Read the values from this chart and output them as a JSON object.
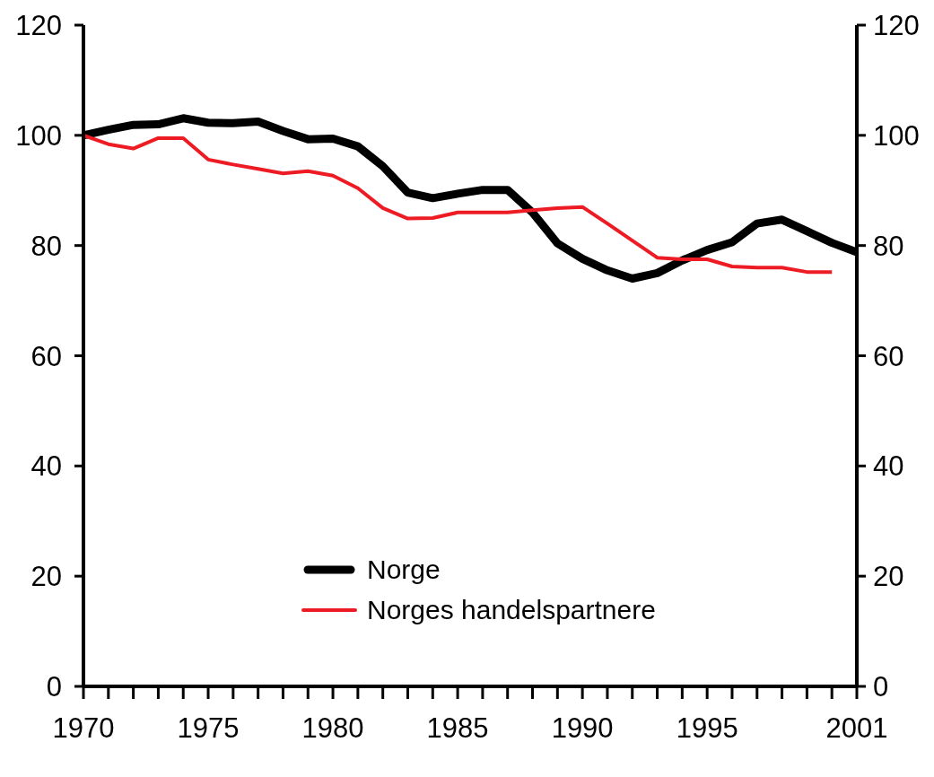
{
  "chart_data": {
    "type": "line",
    "x": [
      1970,
      1971,
      1972,
      1973,
      1974,
      1975,
      1976,
      1977,
      1978,
      1979,
      1980,
      1981,
      1982,
      1983,
      1984,
      1985,
      1986,
      1987,
      1988,
      1989,
      1990,
      1991,
      1992,
      1993,
      1994,
      1995,
      1996,
      1997,
      1998,
      1999,
      2000,
      2001
    ],
    "series": [
      {
        "name": "Norge",
        "color": "#000000",
        "values": [
          100,
          101,
          101.9,
          102,
          103.1,
          102.3,
          102.2,
          102.5,
          100.8,
          99.3,
          99.4,
          98,
          94.4,
          89.6,
          88.6,
          89.4,
          90.1,
          90.1,
          86,
          80.4,
          77.6,
          75.5,
          74,
          75,
          77.3,
          79.2,
          80.6,
          84,
          84.7,
          82.6,
          80.5,
          78.8
        ]
      },
      {
        "name": "Norges handelspartnere",
        "color": "#ed1c24",
        "values": [
          100,
          98.4,
          97.6,
          99.5,
          99.5,
          95.6,
          94.7,
          93.9,
          93.1,
          93.5,
          92.7,
          90.4,
          86.8,
          84.9,
          85,
          86,
          86,
          86,
          86.4,
          86.8,
          87,
          84,
          80.9,
          77.8,
          77.5,
          77.5,
          76.2,
          76,
          76,
          75.2,
          75.2,
          null
        ]
      }
    ],
    "xlim": [
      1970,
      2001
    ],
    "xticks": [
      1970,
      {
        "value": 1971,
        "label": null
      },
      {
        "value": 1972,
        "label": null
      },
      {
        "value": 1973,
        "label": null
      },
      {
        "value": 1974,
        "label": null
      },
      1975,
      {
        "value": 1976,
        "label": null
      },
      {
        "value": 1977,
        "label": null
      },
      {
        "value": 1978,
        "label": null
      },
      {
        "value": 1979,
        "label": null
      },
      1980,
      {
        "value": 1981,
        "label": null
      },
      {
        "value": 1982,
        "label": null
      },
      {
        "value": 1983,
        "label": null
      },
      {
        "value": 1984,
        "label": null
      },
      1985,
      {
        "value": 1986,
        "label": null
      },
      {
        "value": 1987,
        "label": null
      },
      {
        "value": 1988,
        "label": null
      },
      {
        "value": 1989,
        "label": null
      },
      1990,
      {
        "value": 1991,
        "label": null
      },
      {
        "value": 1992,
        "label": null
      },
      {
        "value": 1993,
        "label": null
      },
      {
        "value": 1994,
        "label": null
      },
      1995,
      {
        "value": 1996,
        "label": null
      },
      {
        "value": 1997,
        "label": null
      },
      {
        "value": 1998,
        "label": null
      },
      {
        "value": 1999,
        "label": null
      },
      {
        "value": 2000,
        "label": null
      },
      2001
    ],
    "ylim": [
      0,
      120
    ],
    "yticks": [
      0,
      20,
      40,
      60,
      80,
      100,
      120
    ],
    "y2lim": [
      0,
      120
    ],
    "y2ticks": [
      0,
      20,
      40,
      60,
      80,
      100,
      120
    ],
    "legend": "bottom"
  }
}
